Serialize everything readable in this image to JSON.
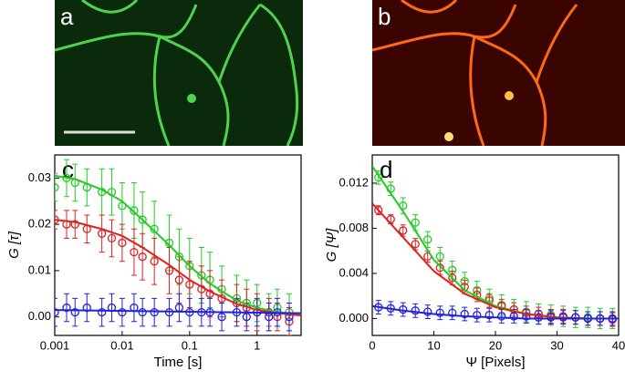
{
  "panels": [
    {
      "label": "a"
    },
    {
      "label": "b"
    }
  ],
  "chart_data": [
    {
      "type": "scatter",
      "panel_label": "c",
      "x_label": "Time [s]",
      "y_label": "G [τ]",
      "xlog": true,
      "xlim": [
        0.001,
        4.5
      ],
      "xticks": [
        0.001,
        0.01,
        0.1,
        1
      ],
      "ylim": [
        -0.004,
        0.035
      ],
      "yticks": [
        {
          "value": 0,
          "label": "0.00"
        },
        {
          "value": 0.01,
          "label": "0.01"
        },
        {
          "value": 0.02,
          "label": "0.02"
        },
        {
          "value": 0.03,
          "label": "0.03"
        }
      ],
      "series": [
        {
          "color": "#22cc22",
          "mode": "markers",
          "x": [
            0.001,
            0.0015,
            0.002,
            0.003,
            0.005,
            0.007,
            0.01,
            0.015,
            0.02,
            0.03,
            0.05,
            0.07,
            0.1,
            0.15,
            0.2,
            0.3,
            0.5,
            0.7,
            1,
            1.5,
            2,
            3
          ],
          "values": [
            0.028,
            0.03,
            0.029,
            0.028,
            0.027,
            0.027,
            0.024,
            0.023,
            0.021,
            0.019,
            0.016,
            0.013,
            0.011,
            0.009,
            0.008,
            0.006,
            0.004,
            0.003,
            0.003,
            0.001,
            0.002,
            0.001
          ],
          "errors": [
            0.003,
            0.004,
            0.004,
            0.004,
            0.005,
            0.005,
            0.005,
            0.006,
            0.006,
            0.006,
            0.006,
            0.006,
            0.006,
            0.006,
            0.006,
            0.005,
            0.005,
            0.005,
            0.004,
            0.004,
            0.004,
            0.004
          ]
        },
        {
          "color": "#dd2222",
          "mode": "markers",
          "x": [
            0.001,
            0.0015,
            0.002,
            0.003,
            0.005,
            0.007,
            0.01,
            0.015,
            0.02,
            0.03,
            0.05,
            0.07,
            0.1,
            0.15,
            0.2,
            0.3,
            0.5,
            0.7,
            1,
            1.5,
            2,
            3
          ],
          "values": [
            0.021,
            0.02,
            0.02,
            0.019,
            0.018,
            0.017,
            0.016,
            0.014,
            0.013,
            0.012,
            0.01,
            0.008,
            0.007,
            0.006,
            0.005,
            0.004,
            0.003,
            0.002,
            0.001,
            0.001,
            0,
            -0.001
          ],
          "errors": [
            0.002,
            0.003,
            0.003,
            0.003,
            0.004,
            0.004,
            0.004,
            0.005,
            0.005,
            0.005,
            0.005,
            0.005,
            0.005,
            0.005,
            0.005,
            0.004,
            0.004,
            0.004,
            0.004,
            0.003,
            0.003,
            0.003
          ]
        },
        {
          "color": "#2222dd",
          "mode": "markers",
          "x": [
            0.001,
            0.0015,
            0.002,
            0.003,
            0.005,
            0.007,
            0.01,
            0.015,
            0.02,
            0.03,
            0.05,
            0.07,
            0.1,
            0.15,
            0.2,
            0.3,
            0.5,
            0.7,
            1,
            1.5,
            2,
            3
          ],
          "values": [
            0.001,
            0.002,
            0.001,
            0.002,
            0.001,
            0.002,
            0.001,
            0.002,
            0.001,
            0.001,
            0.001,
            0.002,
            0.001,
            0.001,
            0.001,
            0,
            0.001,
            0,
            0.001,
            0,
            0.001,
            0
          ],
          "errors": [
            0.003,
            0.003,
            0.003,
            0.003,
            0.003,
            0.003,
            0.003,
            0.003,
            0.003,
            0.003,
            0.003,
            0.003,
            0.003,
            0.003,
            0.003,
            0.003,
            0.003,
            0.003,
            0.003,
            0.003,
            0.003,
            0.003
          ]
        },
        {
          "color": "#22cc22",
          "mode": "line",
          "x": [
            0.001,
            0.002,
            0.005,
            0.01,
            0.02,
            0.05,
            0.1,
            0.2,
            0.5,
            1,
            2,
            4.5
          ],
          "values": [
            0.0305,
            0.0298,
            0.0275,
            0.025,
            0.021,
            0.0155,
            0.011,
            0.0072,
            0.0035,
            0.002,
            0.001,
            0.0005
          ]
        },
        {
          "color": "#dd2222",
          "mode": "line",
          "x": [
            0.001,
            0.002,
            0.005,
            0.01,
            0.02,
            0.05,
            0.1,
            0.2,
            0.5,
            1,
            2,
            4.5
          ],
          "values": [
            0.021,
            0.0205,
            0.019,
            0.0175,
            0.015,
            0.0112,
            0.008,
            0.0055,
            0.0028,
            0.0015,
            0.0008,
            0.0003
          ]
        },
        {
          "color": "#2222dd",
          "mode": "line",
          "x": [
            0.001,
            4.5
          ],
          "values": [
            0.0015,
            0.0008
          ]
        }
      ]
    },
    {
      "type": "scatter",
      "panel_label": "d",
      "x_label": "Ψ [Pixels]",
      "y_label": "G [Ψ]",
      "xlog": false,
      "xlim": [
        0,
        40
      ],
      "xticks": [
        0,
        10,
        20,
        30,
        40
      ],
      "ylim": [
        -0.0015,
        0.0145
      ],
      "yticks": [
        {
          "value": 0,
          "label": "0.000"
        },
        0.004,
        0.008,
        0.012
      ],
      "series": [
        {
          "color": "#22cc22",
          "mode": "markers",
          "x": [
            1,
            3,
            5,
            7,
            9,
            11,
            13,
            15,
            17,
            19,
            21,
            23,
            25,
            27,
            29,
            31,
            33,
            35,
            37,
            39
          ],
          "values": [
            0.0125,
            0.0115,
            0.01,
            0.0085,
            0.007,
            0.0055,
            0.0043,
            0.0033,
            0.0025,
            0.0018,
            0.0012,
            0.0008,
            0.0006,
            0.0004,
            0.0003,
            0.0002,
            0.0001,
            0.0001,
            0,
            0
          ],
          "errors": [
            0.0006,
            0.0006,
            0.0007,
            0.0007,
            0.0007,
            0.0008,
            0.0008,
            0.0008,
            0.0008,
            0.0008,
            0.0009,
            0.0009,
            0.0009,
            0.0009,
            0.0009,
            0.0009,
            0.0009,
            0.0009,
            0.0009,
            0.0009
          ]
        },
        {
          "color": "#dd2222",
          "mode": "markers",
          "x": [
            1,
            3,
            5,
            7,
            9,
            11,
            13,
            15,
            17,
            19,
            21,
            23,
            25,
            27,
            29,
            31,
            33,
            35,
            37,
            39
          ],
          "values": [
            0.0096,
            0.0088,
            0.0078,
            0.0066,
            0.0055,
            0.0045,
            0.0036,
            0.0028,
            0.0021,
            0.0016,
            0.0011,
            0.0008,
            0.0005,
            0.0004,
            0.0002,
            0.0002,
            0.0001,
            0,
            0,
            -0.0001
          ],
          "errors": [
            0.0004,
            0.0004,
            0.0005,
            0.0005,
            0.0005,
            0.0006,
            0.0006,
            0.0006,
            0.0006,
            0.0006,
            0.0006,
            0.0006,
            0.0006,
            0.0006,
            0.0006,
            0.0006,
            0.0006,
            0.0006,
            0.0006,
            0.0006
          ]
        },
        {
          "color": "#2222dd",
          "mode": "markers",
          "x": [
            1,
            3,
            5,
            7,
            9,
            11,
            13,
            15,
            17,
            19,
            21,
            23,
            25,
            27,
            29,
            31,
            33,
            35,
            37,
            39
          ],
          "values": [
            0.001,
            0.0009,
            0.0008,
            0.0007,
            0.0006,
            0.0005,
            0.0005,
            0.0004,
            0.0003,
            0.0003,
            0.0002,
            0.0002,
            0.0002,
            0.0001,
            0.0001,
            0.0001,
            0.0001,
            0,
            0,
            0
          ],
          "errors": [
            0.0006,
            0.0006,
            0.0006,
            0.0006,
            0.0006,
            0.0006,
            0.0006,
            0.0006,
            0.0006,
            0.0006,
            0.0006,
            0.0006,
            0.0006,
            0.0006,
            0.0006,
            0.0006,
            0.0006,
            0.0006,
            0.0006,
            0.0006
          ]
        },
        {
          "color": "#22cc22",
          "mode": "line",
          "x": [
            0,
            5,
            10,
            15,
            20,
            25,
            30,
            35,
            40
          ],
          "values": [
            0.0135,
            0.0095,
            0.0052,
            0.0025,
            0.0011,
            0.0004,
            0.0001,
            0,
            0
          ]
        },
        {
          "color": "#dd2222",
          "mode": "line",
          "x": [
            0,
            5,
            10,
            15,
            20,
            25,
            30,
            35,
            40
          ],
          "values": [
            0.0102,
            0.0072,
            0.0042,
            0.0022,
            0.001,
            0.0004,
            0.0001,
            0,
            0
          ]
        },
        {
          "color": "#2222dd",
          "mode": "line",
          "x": [
            0,
            5,
            10,
            15,
            20,
            25,
            30,
            35,
            40
          ],
          "values": [
            0.0011,
            0.0007,
            0.0004,
            0.0002,
            0.0001,
            0,
            0,
            0,
            0
          ]
        }
      ]
    }
  ]
}
